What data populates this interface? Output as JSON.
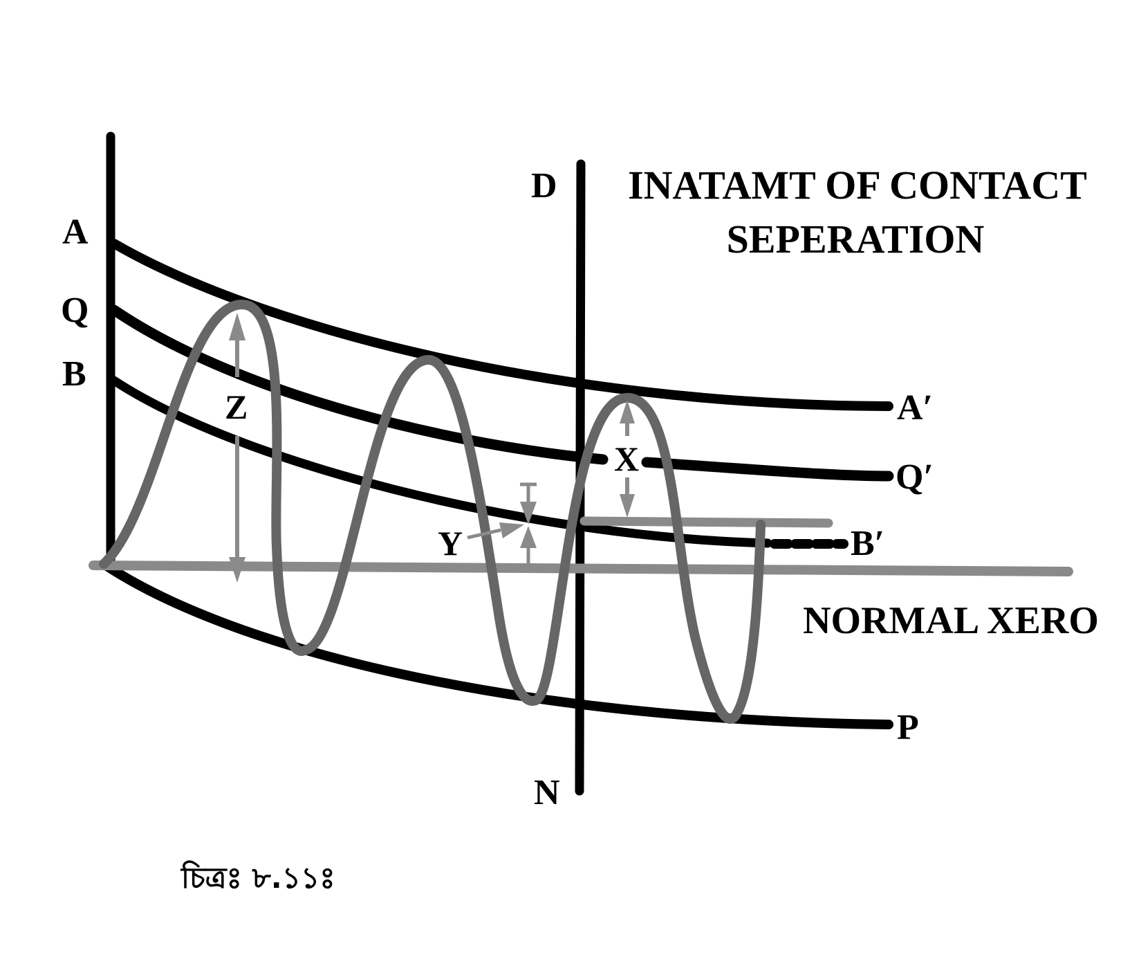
{
  "diagram": {
    "title_line1": "INATAMT OF CONTACT",
    "title_line2": "SEPERATION",
    "baseline_label": "NORMAL XERO",
    "points": {
      "A": "A",
      "Q": "Q",
      "B": "B",
      "A_prime": "A′",
      "Q_prime": "Q′",
      "B_prime": "B′",
      "P": "P",
      "D": "D",
      "N": "N"
    },
    "measures": {
      "X": "X",
      "Y": "Y",
      "Z": "Z"
    },
    "caption": "চিত্রঃ ৮.১১ঃ"
  },
  "colors": {
    "curve": "#000000",
    "wave": "#666666",
    "guide": "#8a8a8a",
    "background": "#ffffff"
  }
}
